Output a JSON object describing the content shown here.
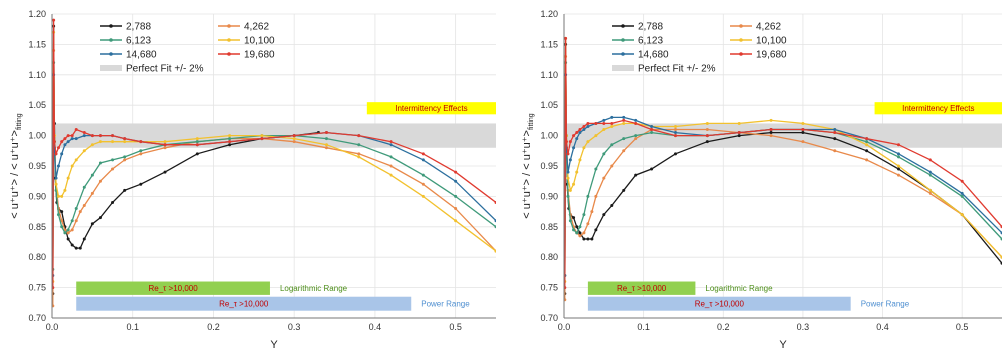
{
  "chart_data": [
    {
      "type": "line",
      "xlabel": "Y",
      "ylabel": "< u⁺u⁺> / < u⁺u⁺>",
      "ylabel_sub": "fitting",
      "xlim": [
        0,
        0.55
      ],
      "ylim": [
        0.7,
        1.2
      ],
      "xticks": [
        "0.0",
        "0.1",
        "0.2",
        "0.3",
        "0.4",
        "0.5"
      ],
      "yticks": [
        "0.70",
        "0.75",
        "0.80",
        "0.85",
        "0.90",
        "0.95",
        "1.00",
        "1.05",
        "1.10",
        "1.15",
        "1.20"
      ],
      "band": {
        "label": "Perfect Fit +/- 2%",
        "y0": 0.98,
        "y1": 1.02,
        "color": "#d9d9d9"
      },
      "annotations": [
        {
          "label": "Intermittency Effects",
          "x0": 0.39,
          "x1": 0.55,
          "y0": 1.035,
          "y1": 1.055,
          "color": "#ffff00",
          "text_color": "#c00000"
        }
      ],
      "ranges": [
        {
          "name": "Logarithmic Range",
          "inner_label": "Re_τ >10,000",
          "x0": 0.03,
          "x1": 0.27,
          "y0": 0.738,
          "y1": 0.76,
          "color": "#92d050",
          "text_color": "#4e8f1a",
          "inner_color": "#c00000"
        },
        {
          "name": "Power Range",
          "inner_label": "Re_τ >10,000",
          "x0": 0.03,
          "x1": 0.445,
          "y0": 0.712,
          "y1": 0.735,
          "color": "#a9c5e8",
          "text_color": "#4f8fd0",
          "inner_color": "#c00000"
        }
      ],
      "series": [
        {
          "name": "2,788",
          "color": "#1a1a1a",
          "x": [
            0.001,
            0.002,
            0.003,
            0.004,
            0.006,
            0.008,
            0.012,
            0.016,
            0.02,
            0.025,
            0.03,
            0.035,
            0.04,
            0.05,
            0.06,
            0.075,
            0.09,
            0.11,
            0.14,
            0.18,
            0.22,
            0.26,
            0.3,
            0.33
          ],
          "y": [
            0.74,
            1.18,
            1.02,
            0.93,
            0.89,
            0.88,
            0.875,
            0.85,
            0.83,
            0.82,
            0.815,
            0.815,
            0.83,
            0.855,
            0.865,
            0.89,
            0.91,
            0.92,
            0.94,
            0.97,
            0.985,
            0.995,
            1.0,
            1.005
          ]
        },
        {
          "name": "4,262",
          "color": "#e8894a",
          "x": [
            0.001,
            0.002,
            0.003,
            0.005,
            0.008,
            0.012,
            0.016,
            0.02,
            0.025,
            0.03,
            0.035,
            0.04,
            0.05,
            0.06,
            0.075,
            0.09,
            0.11,
            0.14,
            0.18,
            0.22,
            0.26,
            0.3,
            0.34,
            0.38,
            0.42,
            0.46,
            0.5,
            0.55
          ],
          "y": [
            0.72,
            1.14,
            1.0,
            0.92,
            0.88,
            0.86,
            0.845,
            0.84,
            0.845,
            0.86,
            0.875,
            0.885,
            0.905,
            0.925,
            0.945,
            0.96,
            0.97,
            0.98,
            0.99,
            0.995,
            0.995,
            0.99,
            0.98,
            0.97,
            0.95,
            0.92,
            0.88,
            0.81
          ]
        },
        {
          "name": "6,123",
          "color": "#3f9a7a",
          "x": [
            0.001,
            0.002,
            0.003,
            0.005,
            0.008,
            0.012,
            0.016,
            0.02,
            0.025,
            0.03,
            0.04,
            0.05,
            0.06,
            0.075,
            0.09,
            0.11,
            0.14,
            0.18,
            0.22,
            0.26,
            0.3,
            0.34,
            0.38,
            0.42,
            0.46,
            0.5,
            0.55
          ],
          "y": [
            0.78,
            1.12,
            0.99,
            0.91,
            0.87,
            0.85,
            0.84,
            0.845,
            0.86,
            0.88,
            0.915,
            0.935,
            0.955,
            0.96,
            0.965,
            0.975,
            0.985,
            0.99,
            0.995,
            1.0,
            1.0,
            0.995,
            0.985,
            0.965,
            0.935,
            0.9,
            0.85
          ]
        },
        {
          "name": "10,100",
          "color": "#f2c12e",
          "x": [
            0.001,
            0.002,
            0.003,
            0.005,
            0.008,
            0.012,
            0.016,
            0.02,
            0.025,
            0.03,
            0.04,
            0.05,
            0.06,
            0.075,
            0.09,
            0.11,
            0.14,
            0.18,
            0.22,
            0.26,
            0.3,
            0.34,
            0.38,
            0.42,
            0.46,
            0.5,
            0.55
          ],
          "y": [
            0.76,
            1.17,
            1.0,
            0.92,
            0.9,
            0.9,
            0.91,
            0.93,
            0.95,
            0.96,
            0.975,
            0.985,
            0.99,
            0.99,
            0.99,
            0.99,
            0.99,
            0.995,
            1.0,
            1.0,
            0.995,
            0.985,
            0.965,
            0.935,
            0.9,
            0.86,
            0.81
          ]
        },
        {
          "name": "14,680",
          "color": "#2c6f9e",
          "x": [
            0.001,
            0.002,
            0.003,
            0.005,
            0.008,
            0.012,
            0.016,
            0.02,
            0.025,
            0.03,
            0.04,
            0.05,
            0.06,
            0.075,
            0.09,
            0.11,
            0.14,
            0.18,
            0.22,
            0.26,
            0.3,
            0.34,
            0.38,
            0.42,
            0.46,
            0.5,
            0.55
          ],
          "y": [
            0.77,
            1.1,
            0.98,
            0.93,
            0.95,
            0.97,
            0.985,
            0.99,
            0.995,
            0.995,
            1.0,
            1.0,
            1.0,
            1.0,
            0.995,
            0.99,
            0.985,
            0.985,
            0.99,
            0.995,
            1.0,
            1.005,
            1.0,
            0.985,
            0.96,
            0.925,
            0.86
          ]
        },
        {
          "name": "19,680",
          "color": "#e03a2f",
          "x": [
            0.001,
            0.002,
            0.003,
            0.005,
            0.008,
            0.012,
            0.016,
            0.02,
            0.025,
            0.03,
            0.04,
            0.05,
            0.06,
            0.075,
            0.09,
            0.11,
            0.14,
            0.18,
            0.22,
            0.26,
            0.3,
            0.34,
            0.38,
            0.42,
            0.46,
            0.5,
            0.55
          ],
          "y": [
            0.75,
            1.19,
            0.99,
            0.97,
            0.98,
            0.99,
            0.995,
            1.0,
            1.0,
            1.01,
            1.005,
            1.0,
            1.0,
            1.0,
            0.995,
            0.99,
            0.985,
            0.985,
            0.99,
            0.995,
            1.0,
            1.005,
            1.0,
            0.99,
            0.97,
            0.94,
            0.89
          ]
        }
      ]
    },
    {
      "type": "line",
      "xlabel": "Y",
      "ylabel": "< u⁺u⁺> / < u⁺u⁺>",
      "ylabel_sub": "fitting",
      "xlim": [
        0,
        0.55
      ],
      "ylim": [
        0.7,
        1.2
      ],
      "xticks": [
        "0.0",
        "0.1",
        "0.2",
        "0.3",
        "0.4",
        "0.5"
      ],
      "yticks": [
        "0.70",
        "0.75",
        "0.80",
        "0.85",
        "0.90",
        "0.95",
        "1.00",
        "1.05",
        "1.10",
        "1.15",
        "1.20"
      ],
      "band": {
        "label": "Perfect Fit +/- 2%",
        "y0": 0.98,
        "y1": 1.02,
        "color": "#d9d9d9"
      },
      "annotations": [
        {
          "label": "Intermittency Effects",
          "x0": 0.39,
          "x1": 0.55,
          "y0": 1.035,
          "y1": 1.055,
          "color": "#ffff00",
          "text_color": "#c00000"
        }
      ],
      "ranges": [
        {
          "name": "Logarithmic Range",
          "inner_label": "Re_τ >10,000",
          "x0": 0.03,
          "x1": 0.165,
          "y0": 0.738,
          "y1": 0.76,
          "color": "#92d050",
          "text_color": "#4e8f1a",
          "inner_color": "#c00000"
        },
        {
          "name": "Power Range",
          "inner_label": "Re_τ >10,000",
          "x0": 0.03,
          "x1": 0.36,
          "y0": 0.712,
          "y1": 0.735,
          "color": "#a9c5e8",
          "text_color": "#4f8fd0",
          "inner_color": "#c00000"
        }
      ],
      "series": [
        {
          "name": "2,788",
          "color": "#1a1a1a",
          "x": [
            0.001,
            0.002,
            0.003,
            0.004,
            0.006,
            0.008,
            0.012,
            0.016,
            0.02,
            0.025,
            0.03,
            0.035,
            0.04,
            0.05,
            0.06,
            0.075,
            0.09,
            0.11,
            0.14,
            0.18,
            0.22,
            0.26,
            0.3,
            0.34,
            0.38,
            0.42,
            0.46,
            0.5,
            0.55
          ],
          "y": [
            0.74,
            1.15,
            1.0,
            0.92,
            0.88,
            0.87,
            0.865,
            0.85,
            0.84,
            0.83,
            0.83,
            0.83,
            0.845,
            0.87,
            0.885,
            0.91,
            0.935,
            0.945,
            0.97,
            0.99,
            1.0,
            1.005,
            1.005,
            0.995,
            0.975,
            0.945,
            0.91,
            0.87,
            0.79
          ]
        },
        {
          "name": "4,262",
          "color": "#e8894a",
          "x": [
            0.001,
            0.002,
            0.003,
            0.005,
            0.008,
            0.012,
            0.016,
            0.02,
            0.025,
            0.03,
            0.035,
            0.04,
            0.05,
            0.06,
            0.075,
            0.09,
            0.11,
            0.14,
            0.18,
            0.22,
            0.26,
            0.3,
            0.34,
            0.38,
            0.42,
            0.46,
            0.5,
            0.55
          ],
          "y": [
            0.73,
            1.13,
            0.99,
            0.91,
            0.87,
            0.85,
            0.84,
            0.835,
            0.84,
            0.855,
            0.875,
            0.9,
            0.93,
            0.95,
            0.975,
            0.995,
            1.01,
            1.01,
            1.01,
            1.005,
            1.0,
            0.99,
            0.975,
            0.96,
            0.935,
            0.905,
            0.87,
            0.8
          ]
        },
        {
          "name": "6,123",
          "color": "#3f9a7a",
          "x": [
            0.001,
            0.002,
            0.003,
            0.005,
            0.008,
            0.012,
            0.016,
            0.02,
            0.025,
            0.03,
            0.04,
            0.05,
            0.06,
            0.075,
            0.09,
            0.11,
            0.14,
            0.18,
            0.22,
            0.26,
            0.3,
            0.34,
            0.38,
            0.42,
            0.46,
            0.5,
            0.55
          ],
          "y": [
            0.77,
            1.12,
            0.98,
            0.9,
            0.86,
            0.845,
            0.84,
            0.85,
            0.87,
            0.9,
            0.945,
            0.97,
            0.985,
            0.995,
            1.0,
            1.005,
            1.0,
            1.0,
            1.005,
            1.01,
            1.01,
            1.005,
            0.99,
            0.965,
            0.935,
            0.9,
            0.83
          ]
        },
        {
          "name": "10,100",
          "color": "#f2c12e",
          "x": [
            0.001,
            0.002,
            0.003,
            0.005,
            0.008,
            0.012,
            0.016,
            0.02,
            0.025,
            0.03,
            0.04,
            0.05,
            0.06,
            0.075,
            0.09,
            0.11,
            0.14,
            0.18,
            0.22,
            0.26,
            0.3,
            0.34,
            0.38,
            0.42,
            0.46,
            0.5,
            0.55
          ],
          "y": [
            0.76,
            1.16,
            1.0,
            0.93,
            0.91,
            0.92,
            0.94,
            0.96,
            0.98,
            0.99,
            1.0,
            1.01,
            1.015,
            1.02,
            1.02,
            1.015,
            1.015,
            1.02,
            1.02,
            1.025,
            1.02,
            1.01,
            0.985,
            0.95,
            0.91,
            0.87,
            0.8
          ]
        },
        {
          "name": "14,680",
          "color": "#2c6f9e",
          "x": [
            0.001,
            0.002,
            0.003,
            0.005,
            0.008,
            0.012,
            0.016,
            0.02,
            0.025,
            0.03,
            0.04,
            0.05,
            0.06,
            0.075,
            0.09,
            0.11,
            0.14,
            0.18,
            0.22,
            0.26,
            0.3,
            0.34,
            0.38,
            0.42,
            0.46,
            0.5,
            0.55
          ],
          "y": [
            0.77,
            1.1,
            0.98,
            0.94,
            0.96,
            0.98,
            0.995,
            1.005,
            1.01,
            1.015,
            1.02,
            1.025,
            1.03,
            1.03,
            1.025,
            1.015,
            1.005,
            1.0,
            1.005,
            1.01,
            1.01,
            1.01,
            0.995,
            0.97,
            0.94,
            0.905,
            0.84
          ]
        },
        {
          "name": "19,680",
          "color": "#e03a2f",
          "x": [
            0.001,
            0.002,
            0.003,
            0.005,
            0.008,
            0.012,
            0.016,
            0.02,
            0.025,
            0.03,
            0.04,
            0.05,
            0.06,
            0.075,
            0.09,
            0.11,
            0.14,
            0.18,
            0.22,
            0.26,
            0.3,
            0.34,
            0.38,
            0.42,
            0.46,
            0.5,
            0.55
          ],
          "y": [
            0.75,
            1.16,
            0.99,
            0.97,
            0.99,
            1.0,
            1.005,
            1.01,
            1.015,
            1.02,
            1.02,
            1.02,
            1.02,
            1.025,
            1.02,
            1.01,
            1.0,
            1.0,
            1.005,
            1.01,
            1.01,
            1.005,
            0.995,
            0.985,
            0.96,
            0.925,
            0.85
          ]
        }
      ]
    }
  ]
}
